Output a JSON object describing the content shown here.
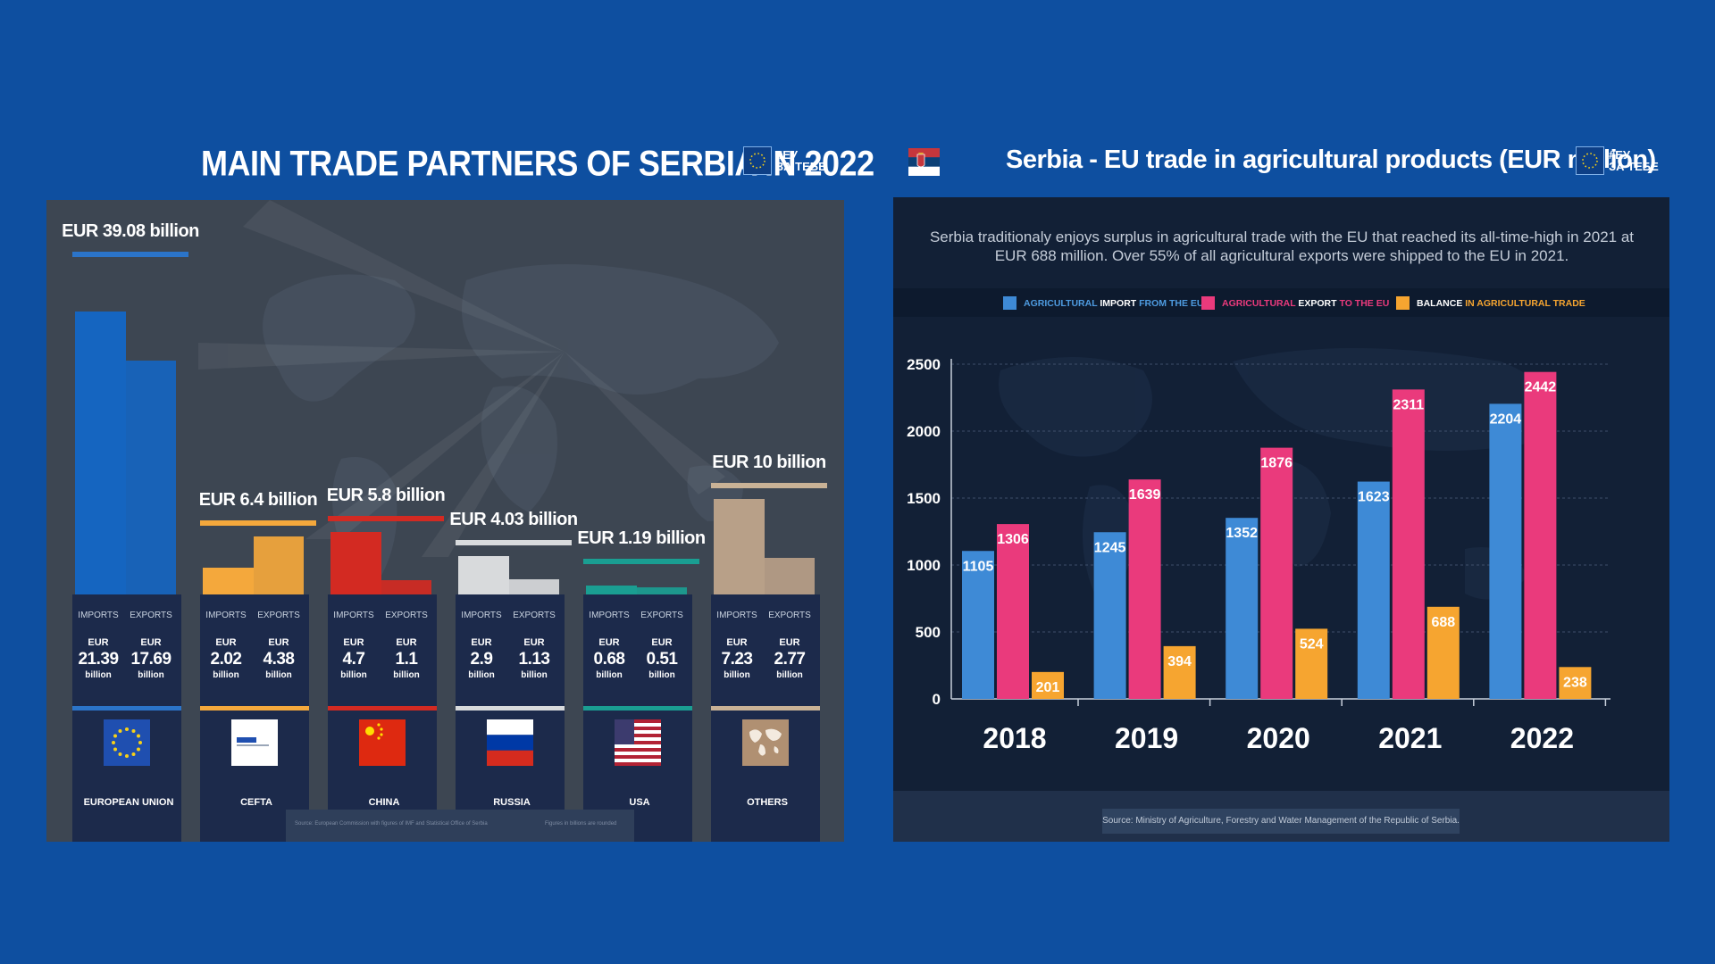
{
  "left": {
    "title": "MAIN TRADE PARTNERS OF SERBIA IN 2022",
    "logo_text_1": "#ЕУ",
    "logo_text_2": "ЗА ТЕБЕ",
    "col_import": "IMPORTS",
    "col_export": "EXPORTS",
    "eur": "EUR",
    "billion": "billion",
    "partners": [
      {
        "name": "EUROPEAN UNION",
        "total": "EUR 39.08 billion",
        "imports": "21.39",
        "exports": "17.69",
        "color": "#1565c0",
        "line": "#2b74c9",
        "flag": "eu-flag-icon"
      },
      {
        "name": "CEFTA",
        "total": "EUR 6.4 billion",
        "imports": "2.02",
        "exports": "4.38",
        "color": "#f4a83c",
        "line": "#f4a83c",
        "flag": "cefta-logo-icon"
      },
      {
        "name": "CHINA",
        "total": "EUR 5.8 billion",
        "imports": "4.7",
        "exports": "1.1",
        "color": "#d32a22",
        "line": "#d32a22",
        "flag": "china-flag-icon"
      },
      {
        "name": "RUSSIA",
        "total": "EUR 4.03 billion",
        "imports": "2.9",
        "exports": "1.13",
        "color": "#d8dadc",
        "line": "#d8dadc",
        "flag": "russia-flag-icon"
      },
      {
        "name": "USA",
        "total": "EUR 1.19 billion",
        "imports": "0.68",
        "exports": "0.51",
        "color": "#1a9e92",
        "line": "#1a9e92",
        "flag": "usa-flag-icon"
      },
      {
        "name": "OTHERS",
        "total": "EUR 10 billion",
        "imports": "7.23",
        "exports": "2.77",
        "color": "#b8a088",
        "line": "#c9b296",
        "flag": "world-map-icon"
      }
    ],
    "footer_source": "Source: European Commission with figures of IMF and Statistical Office of Serbia",
    "footer_note": "Figures in billions are rounded"
  },
  "right": {
    "title": "Serbia - EU trade in agricultural products (EUR million)",
    "logo_text_1": "#ЕУ",
    "logo_text_2": "ЗА ТЕБЕ",
    "intro_line1": "Serbia traditionaly enjoys surplus in agricultural trade with the EU that reached its all-time-high in 2021 at",
    "intro_line2": "EUR 688 million. Over 55% of all agricultural exports were shipped to the EU in 2021.",
    "source": "Source: Ministry of Agriculture, Forestry and Water Management of the Republic of Serbia."
  },
  "chart_data": {
    "type": "bar",
    "title": "Serbia - EU trade in agricultural products (EUR million)",
    "categories": [
      "2018",
      "2019",
      "2020",
      "2021",
      "2022"
    ],
    "series": [
      {
        "name": "AGRICULTURAL IMPORT FROM THE EU",
        "legend_a": "AGRICULTURAL",
        "legend_b": "IMPORT",
        "legend_c": "FROM THE EU",
        "color": "#3e8ad6",
        "values": [
          1105,
          1245,
          1352,
          1623,
          2204
        ]
      },
      {
        "name": "AGRICULTURAL EXPORT TO THE EU",
        "legend_a": "AGRICULTURAL",
        "legend_b": "EXPORT",
        "legend_c": "TO THE EU",
        "color": "#ea3a7c",
        "values": [
          1306,
          1639,
          1876,
          2311,
          2442
        ]
      },
      {
        "name": "BALANCE IN AGRICULTURAL TRADE",
        "legend_a": "",
        "legend_b": "BALANCE",
        "legend_c": "IN AGRICULTURAL TRADE",
        "color": "#f6a530",
        "values": [
          201,
          394,
          524,
          688,
          238
        ]
      }
    ],
    "yticks": [
      "0",
      "500",
      "1000",
      "1500",
      "2000",
      "2500"
    ],
    "ylim": [
      0,
      2500
    ],
    "grid": true,
    "legend_position": "top"
  }
}
